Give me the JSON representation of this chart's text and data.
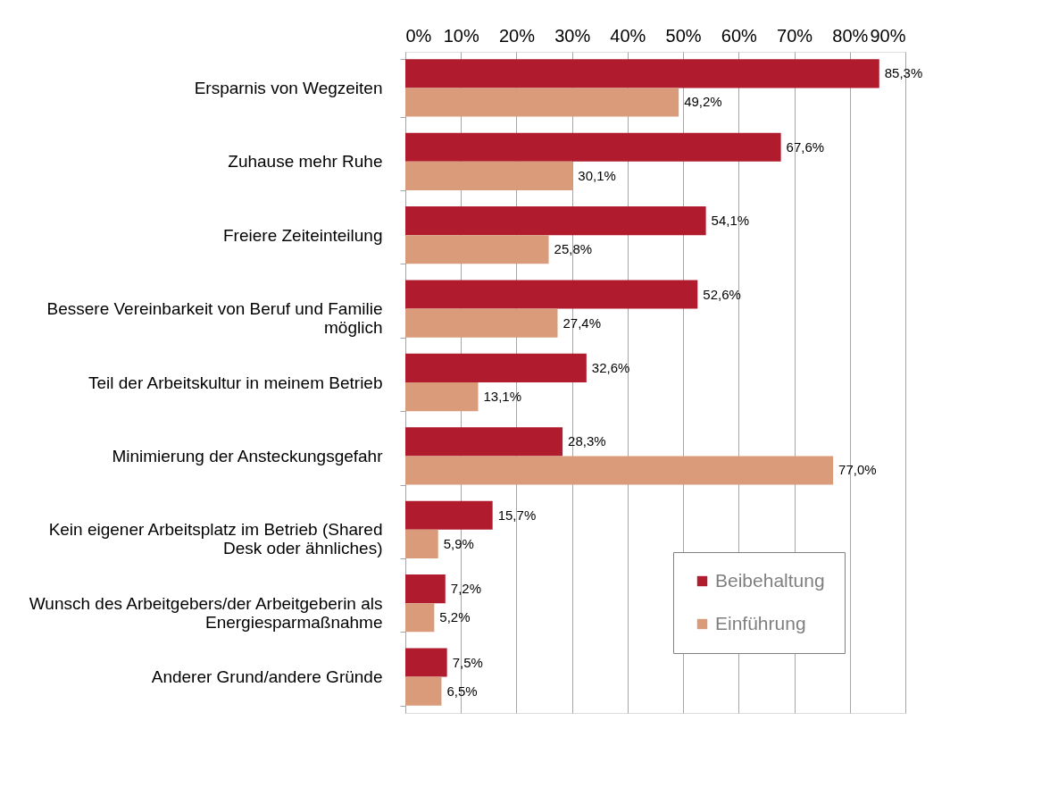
{
  "chart_data": {
    "type": "bar",
    "orientation": "horizontal",
    "categories": [
      "Ersparnis von Wegzeiten",
      "Zuhause mehr Ruhe",
      "Freiere Zeiteinteilung",
      "Bessere Vereinbarkeit von Beruf und Familie möglich",
      "Teil der Arbeitskultur in meinem Betrieb",
      "Minimierung der Ansteckungsgefahr",
      "Kein eigener Arbeitsplatz im Betrieb (Shared Desk oder ähnliches)",
      "Wunsch des Arbeitgebers/der Arbeitgeberin als Energiesparmaßnahme",
      "Anderer Grund/andere Gründe"
    ],
    "series": [
      {
        "name": "Beibehaltung",
        "color": "#b01c2e",
        "values": [
          85.3,
          67.6,
          54.1,
          52.6,
          32.6,
          28.3,
          15.7,
          7.2,
          7.5
        ],
        "value_labels": [
          "85,3%",
          "67,6%",
          "54,1%",
          "52,6%",
          "32,6%",
          "28,3%",
          "15,7%",
          "7,2%",
          "7,5%"
        ]
      },
      {
        "name": "Einführung",
        "color": "#d99b7a",
        "values": [
          49.2,
          30.1,
          25.8,
          27.4,
          13.1,
          77.0,
          5.9,
          5.2,
          6.5
        ],
        "value_labels": [
          "49,2%",
          "30,1%",
          "25,8%",
          "27,4%",
          "13,1%",
          "77,0%",
          "5,9%",
          "5,2%",
          "6,5%"
        ]
      }
    ],
    "xlim": [
      0,
      90
    ],
    "xticks": [
      {
        "value": 0,
        "label": "0%"
      },
      {
        "value": 10,
        "label": "10%"
      },
      {
        "value": 20,
        "label": "20%"
      },
      {
        "value": 30,
        "label": "30%"
      },
      {
        "value": 40,
        "label": "40%"
      },
      {
        "value": 50,
        "label": "50%"
      },
      {
        "value": 60,
        "label": "60%"
      },
      {
        "value": 70,
        "label": "70%"
      },
      {
        "value": 80,
        "label": "80%"
      },
      {
        "value": 90,
        "label": "90%"
      }
    ],
    "grid": "x",
    "legend": "bottom right"
  }
}
